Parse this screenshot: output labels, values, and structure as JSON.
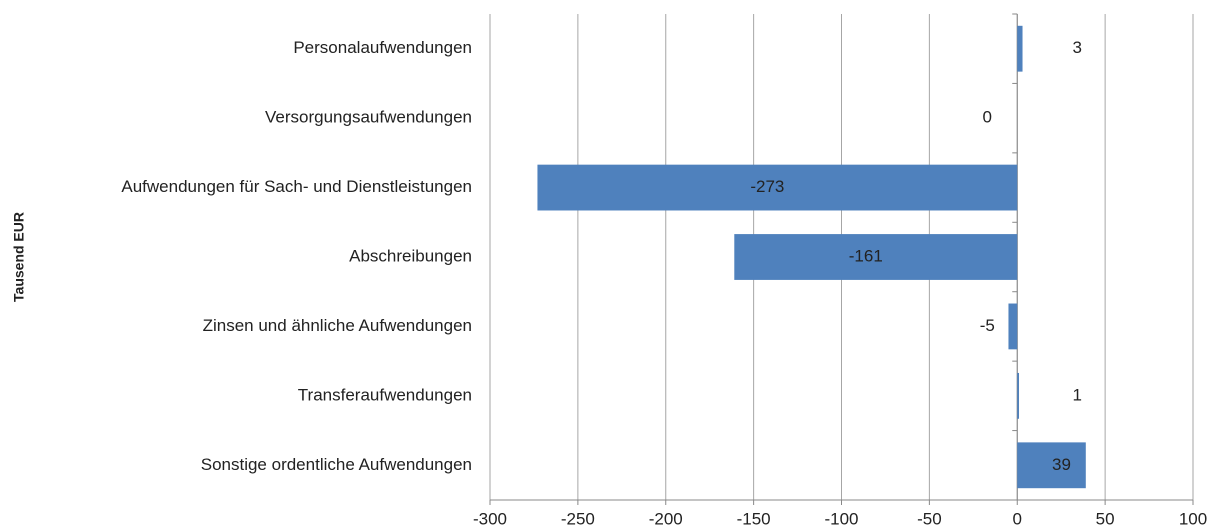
{
  "chart_data": {
    "type": "hbar",
    "ylabel": "Tausend EUR",
    "categories": [
      "Personalaufwendungen",
      "Versorgungsaufwendungen",
      "Aufwendungen für Sach- und Dienstleistungen",
      "Abschreibungen",
      "Zinsen und ähnliche Aufwendungen",
      "Transferaufwendungen",
      "Sonstige ordentliche Aufwendungen"
    ],
    "values": [
      3,
      0,
      -273,
      -161,
      -5,
      1,
      39
    ],
    "color": "#4f81bd",
    "xlim": [
      -300,
      100
    ],
    "xticks": [
      -300,
      -250,
      -200,
      -150,
      -100,
      -50,
      0,
      50,
      100
    ],
    "grid": true
  }
}
